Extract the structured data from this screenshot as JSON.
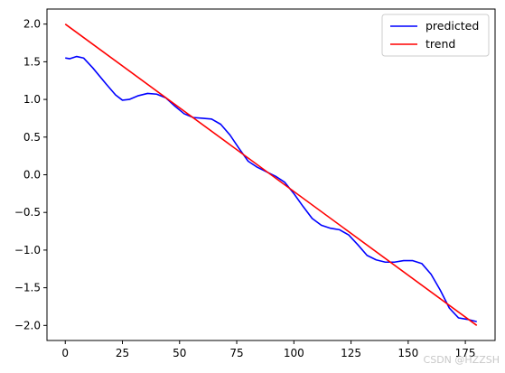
{
  "chart_data": {
    "type": "line",
    "title": "",
    "xlabel": "",
    "ylabel": "",
    "xlim": [
      -8,
      188
    ],
    "ylim": [
      -2.2,
      2.2
    ],
    "xticks": [
      0,
      25,
      50,
      75,
      100,
      125,
      150,
      175
    ],
    "yticks": [
      2.0,
      1.5,
      1.0,
      0.5,
      0.0,
      -0.5,
      -1.0,
      -1.5,
      -2.0
    ],
    "xtick_labels": [
      "0",
      "25",
      "50",
      "75",
      "100",
      "125",
      "150",
      "175"
    ],
    "ytick_labels": [
      "2.0",
      "1.5",
      "1.0",
      "0.5",
      "0.0",
      "−0.5",
      "−1.0",
      "−1.5",
      "−2.0"
    ],
    "grid": false,
    "legend_position": "top-right",
    "series": [
      {
        "name": "predicted",
        "color": "#0000ff",
        "x": [
          0,
          2,
          5,
          8,
          12,
          18,
          22,
          25,
          28,
          32,
          36,
          40,
          44,
          48,
          52,
          56,
          60,
          64,
          68,
          72,
          76,
          80,
          84,
          88,
          92,
          96,
          100,
          104,
          108,
          112,
          116,
          120,
          124,
          128,
          132,
          136,
          140,
          144,
          148,
          152,
          156,
          160,
          164,
          168,
          172,
          176,
          180
        ],
        "y": [
          1.55,
          1.54,
          1.57,
          1.55,
          1.42,
          1.2,
          1.06,
          0.99,
          1.0,
          1.05,
          1.08,
          1.07,
          1.02,
          0.91,
          0.81,
          0.76,
          0.75,
          0.74,
          0.67,
          0.53,
          0.35,
          0.18,
          0.1,
          0.04,
          -0.02,
          -0.1,
          -0.25,
          -0.42,
          -0.58,
          -0.67,
          -0.71,
          -0.73,
          -0.8,
          -0.93,
          -1.07,
          -1.13,
          -1.16,
          -1.16,
          -1.14,
          -1.14,
          -1.18,
          -1.32,
          -1.53,
          -1.77,
          -1.9,
          -1.92,
          -1.95
        ]
      },
      {
        "name": "trend",
        "color": "#ff0000",
        "x": [
          0,
          180
        ],
        "y": [
          2.0,
          -2.0
        ]
      }
    ]
  },
  "watermark": "CSDN @HZZSH"
}
